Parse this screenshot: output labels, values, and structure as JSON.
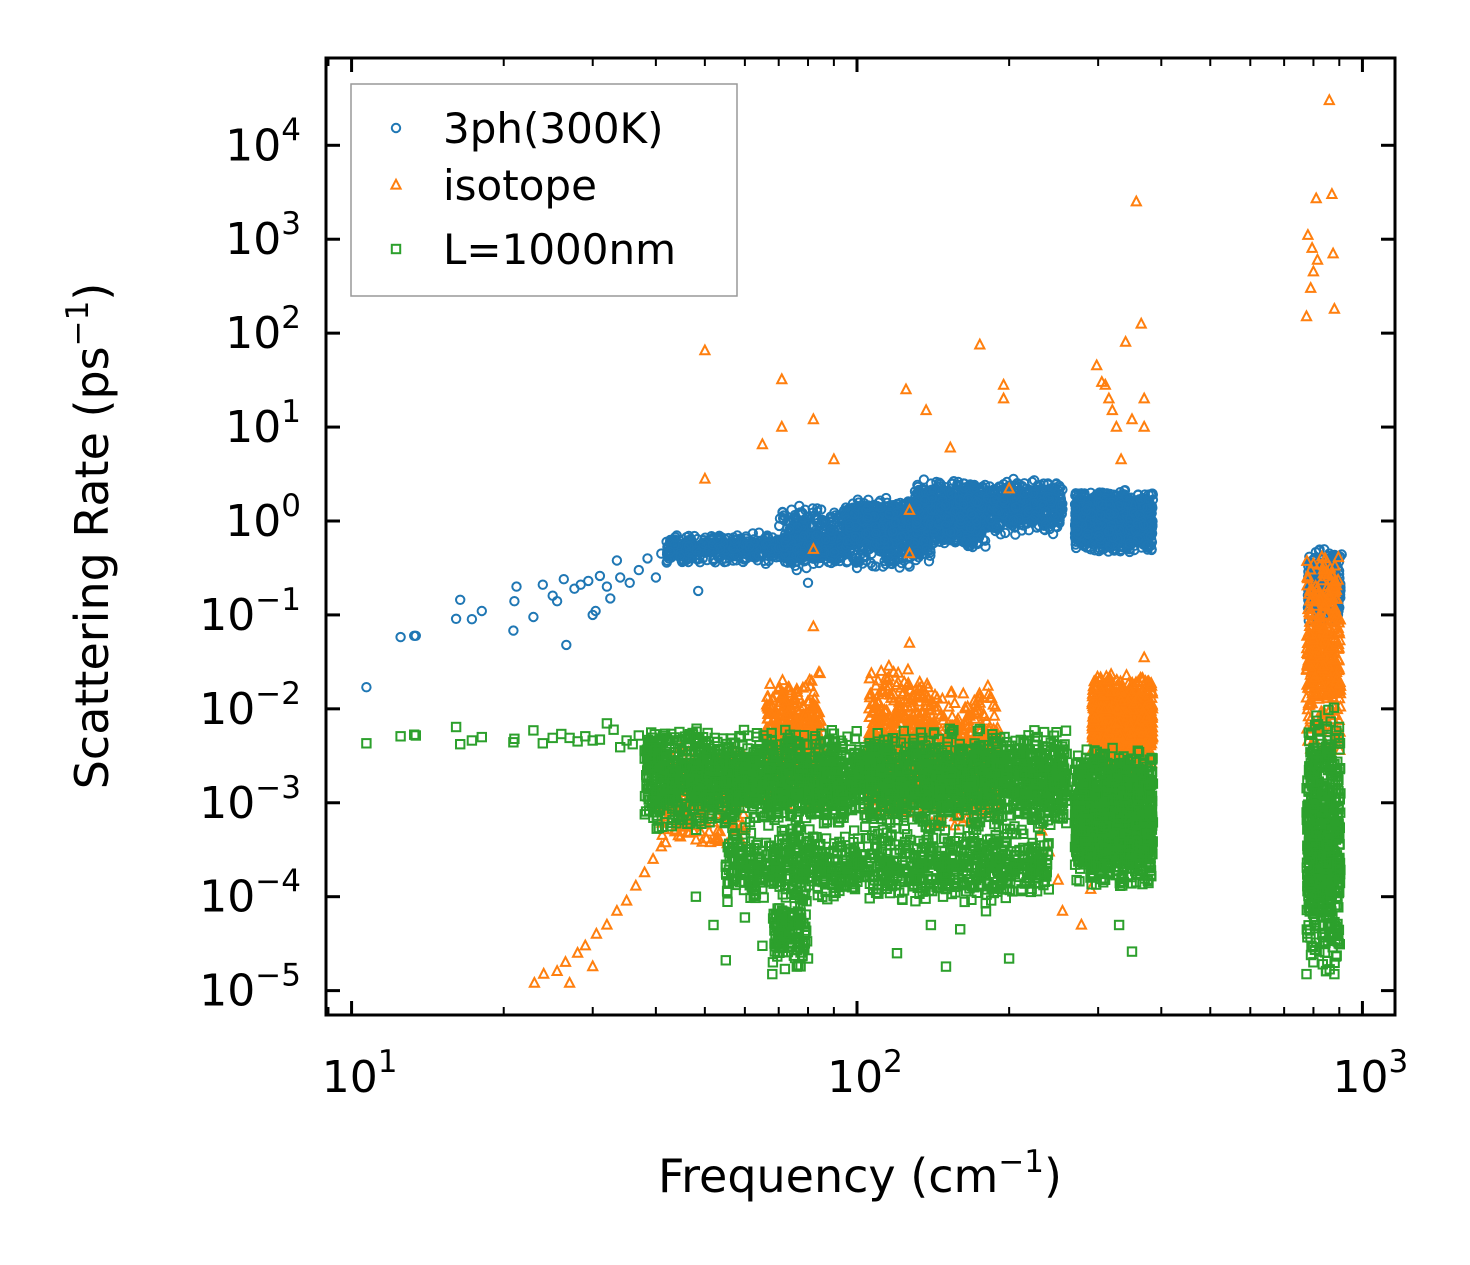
{
  "chart_data": {
    "type": "scatter",
    "title": "",
    "xlabel": "Frequency (cm",
    "xlabel_exp": "−1",
    "xlabel_suffix": ")",
    "ylabel": "Scattering Rate (ps",
    "ylabel_exp": "−1",
    "ylabel_suffix": ")",
    "xscale": "log",
    "yscale": "log",
    "xlim": [
      8.9,
      1160
    ],
    "ylim": [
      5.5e-06,
      85000.0
    ],
    "grid": false,
    "legend_position": "top-left",
    "x_ticks": [
      {
        "value": 10,
        "base": "10",
        "exp": "1"
      },
      {
        "value": 100,
        "base": "10",
        "exp": "2"
      },
      {
        "value": 1000,
        "base": "10",
        "exp": "3"
      }
    ],
    "y_ticks": [
      {
        "value": 1e-05,
        "base": "10",
        "exp": "−5"
      },
      {
        "value": 0.0001,
        "base": "10",
        "exp": "−4"
      },
      {
        "value": 0.001,
        "base": "10",
        "exp": "−3"
      },
      {
        "value": 0.01,
        "base": "10",
        "exp": "−2"
      },
      {
        "value": 0.1,
        "base": "10",
        "exp": "−1"
      },
      {
        "value": 1,
        "base": "10",
        "exp": "0"
      },
      {
        "value": 10,
        "base": "10",
        "exp": "1"
      },
      {
        "value": 100,
        "base": "10",
        "exp": "2"
      },
      {
        "value": 1000,
        "base": "10",
        "exp": "3"
      },
      {
        "value": 10000,
        "base": "10",
        "exp": "4"
      }
    ],
    "series": [
      {
        "name": "3ph(300K)",
        "color": "#1f77b4",
        "marker": "circle",
        "points": [
          [
            10.7,
            0.017
          ],
          [
            12.5,
            0.058
          ],
          [
            13.3,
            0.06
          ],
          [
            13.4,
            0.06
          ],
          [
            16.1,
            0.091
          ],
          [
            16.4,
            0.145
          ],
          [
            17.3,
            0.09
          ],
          [
            18.1,
            0.11
          ],
          [
            20.9,
            0.068
          ],
          [
            21.0,
            0.14
          ],
          [
            21.2,
            0.2
          ],
          [
            22.9,
            0.095
          ],
          [
            23.9,
            0.21
          ],
          [
            25.0,
            0.16
          ],
          [
            25.5,
            0.14
          ],
          [
            26.3,
            0.24
          ],
          [
            26.6,
            0.048
          ],
          [
            27.6,
            0.19
          ],
          [
            28.4,
            0.21
          ],
          [
            29.4,
            0.23
          ],
          [
            30.0,
            0.1
          ],
          [
            30.4,
            0.11
          ],
          [
            31.0,
            0.26
          ],
          [
            32.0,
            0.2
          ],
          [
            32.5,
            0.15
          ],
          [
            33.5,
            0.38
          ],
          [
            34.0,
            0.25
          ],
          [
            35.5,
            0.22
          ],
          [
            37.0,
            0.3
          ],
          [
            38.5,
            0.4
          ],
          [
            40.0,
            0.25
          ],
          [
            41.0,
            0.45
          ],
          [
            42.0,
            0.6
          ],
          [
            43.0,
            0.55
          ],
          [
            44.0,
            0.7
          ],
          [
            45.5,
            0.5
          ],
          [
            47.0,
            0.62
          ],
          [
            48.5,
            0.18
          ],
          [
            50.0,
            0.55
          ],
          [
            52.0,
            0.65
          ],
          [
            54.0,
            0.6
          ],
          [
            56.0,
            0.5
          ],
          [
            58.0,
            0.7
          ],
          [
            60.0,
            0.58
          ],
          [
            62.0,
            0.45
          ],
          [
            64.0,
            0.75
          ],
          [
            66.0,
            0.35
          ],
          [
            68.0,
            0.5
          ],
          [
            70.0,
            0.62
          ],
          [
            72.0,
            0.45
          ],
          [
            74.0,
            0.55
          ],
          [
            76.0,
            0.3
          ],
          [
            78.0,
            0.45
          ],
          [
            80.0,
            0.22
          ],
          [
            82.0,
            0.35
          ],
          [
            84.0,
            0.5
          ],
          [
            86.0,
            0.55
          ],
          [
            88.0,
            0.6
          ],
          [
            90.0,
            0.8
          ],
          [
            93.0,
            0.45
          ],
          [
            96.0,
            1.0
          ],
          [
            99.0,
            0.7
          ],
          [
            102.0,
            1.2
          ],
          [
            105.0,
            0.9
          ],
          [
            108.0,
            0.6
          ],
          [
            112.0,
            1.4
          ],
          [
            116.0,
            0.5
          ],
          [
            120.0,
            1.1
          ],
          [
            124.0,
            0.8
          ],
          [
            128.0,
            1.5
          ],
          [
            132.0,
            1.3
          ],
          [
            136.0,
            0.9
          ],
          [
            140.0,
            2.5
          ],
          [
            145.0,
            1.8
          ],
          [
            150.0,
            1.2
          ],
          [
            155.0,
            2.0
          ],
          [
            160.0,
            1.5
          ],
          [
            165.0,
            0.8
          ],
          [
            170.0,
            1.1
          ],
          [
            175.0,
            1.6
          ],
          [
            180.0,
            1.9
          ],
          [
            186.0,
            1.3
          ],
          [
            192.0,
            0.9
          ],
          [
            198.0,
            2.6
          ],
          [
            204.0,
            2.8
          ],
          [
            210.0,
            1.4
          ],
          [
            216.0,
            2.2
          ],
          [
            222.0,
            2.6
          ],
          [
            228.0,
            2.4
          ],
          [
            234.0,
            2.5
          ],
          [
            240.0,
            2.1
          ],
          [
            246.0,
            2.0
          ],
          [
            252.0,
            1.9
          ],
          [
            272.0,
            1.4
          ],
          [
            282.0,
            0.9
          ],
          [
            290.0,
            0.5
          ],
          [
            298.0,
            1.2
          ],
          [
            306.0,
            2.0
          ],
          [
            314.0,
            0.6
          ],
          [
            322.0,
            1.5
          ],
          [
            330.0,
            0.8
          ],
          [
            338.0,
            2.1
          ],
          [
            346.0,
            0.5
          ],
          [
            354.0,
            1.3
          ],
          [
            362.0,
            1.7
          ],
          [
            370.0,
            0.9
          ],
          [
            378.0,
            1.1
          ],
          [
            780.0,
            0.12
          ],
          [
            800.0,
            0.25
          ],
          [
            820.0,
            0.35
          ],
          [
            840.0,
            0.5
          ],
          [
            860.0,
            0.45
          ],
          [
            880.0,
            0.3
          ],
          [
            900.0,
            0.42
          ],
          [
            910.0,
            0.44
          ]
        ],
        "bands": [
          {
            "x": [
              42,
              95
            ],
            "y": [
              0.35,
              0.75
            ],
            "n": 600
          },
          {
            "x": [
              70,
              140
            ],
            "y": [
              0.3,
              1.5
            ],
            "n": 600
          },
          {
            "x": [
              95,
              180
            ],
            "y": [
              0.5,
              1.8
            ],
            "n": 900
          },
          {
            "x": [
              130,
              255
            ],
            "y": [
              0.7,
              2.8
            ],
            "n": 900
          },
          {
            "x": [
              270,
              385
            ],
            "y": [
              0.45,
              2.2
            ],
            "n": 1300
          },
          {
            "x": [
              780,
              905
            ],
            "y": [
              0.08,
              0.55
            ],
            "n": 260
          }
        ]
      },
      {
        "name": "isotope",
        "color": "#ff7f0e",
        "marker": "triangle",
        "points": [
          [
            23.0,
            1.2e-05
          ],
          [
            24.0,
            1.5e-05
          ],
          [
            25.5,
            1.6e-05
          ],
          [
            26.5,
            2e-05
          ],
          [
            27.0,
            1.2e-05
          ],
          [
            28.0,
            2.5e-05
          ],
          [
            29.0,
            3e-05
          ],
          [
            30.0,
            1.8e-05
          ],
          [
            30.5,
            4e-05
          ],
          [
            32.0,
            5e-05
          ],
          [
            33.5,
            7e-05
          ],
          [
            35.0,
            9e-05
          ],
          [
            36.5,
            0.00013
          ],
          [
            38.0,
            0.00018
          ],
          [
            39.5,
            0.00025
          ],
          [
            41.0,
            0.00034
          ],
          [
            50.0,
            65
          ],
          [
            50.0,
            2.8
          ],
          [
            65.0,
            6.5
          ],
          [
            71.0,
            32
          ],
          [
            71.0,
            10
          ],
          [
            82.0,
            12
          ],
          [
            82.0,
            0.5
          ],
          [
            82.0,
            0.075
          ],
          [
            90.0,
            4.5
          ],
          [
            125.0,
            25
          ],
          [
            127.0,
            1.3
          ],
          [
            127.0,
            0.45
          ],
          [
            137.0,
            15
          ],
          [
            153.0,
            6
          ],
          [
            175.0,
            75
          ],
          [
            195.0,
            28
          ],
          [
            195.0,
            20
          ],
          [
            200.0,
            2.2
          ],
          [
            298.0,
            45
          ],
          [
            305.0,
            30
          ],
          [
            310.0,
            28
          ],
          [
            315.0,
            20
          ],
          [
            320.0,
            15
          ],
          [
            326.0,
            10
          ],
          [
            333.0,
            4.5
          ],
          [
            340.0,
            80
          ],
          [
            350.0,
            12
          ],
          [
            357.0,
            2500
          ],
          [
            365.0,
            125
          ],
          [
            370.0,
            20
          ],
          [
            370.0,
            10
          ],
          [
            775.0,
            150
          ],
          [
            780.0,
            1100
          ],
          [
            790.0,
            300
          ],
          [
            795.0,
            800
          ],
          [
            800.0,
            450
          ],
          [
            810.0,
            2700
          ],
          [
            815.0,
            600
          ],
          [
            860.0,
            30000
          ],
          [
            870.0,
            3000
          ],
          [
            875.0,
            700
          ],
          [
            880.0,
            180
          ],
          [
            232.0,
            0.0005
          ],
          [
            240.0,
            0.0003
          ],
          [
            250.0,
            0.00015
          ],
          [
            255.0,
            7e-05
          ],
          [
            278.0,
            5e-05
          ],
          [
            290.0,
            0.00012
          ],
          [
            370.0,
            0.035
          ],
          [
            127.0,
            0.05
          ],
          [
            175.0,
            0.013
          ]
        ],
        "bands": [
          {
            "x": [
              41,
              60
            ],
            "y": [
              0.0003,
              0.004
            ],
            "n": 220
          },
          {
            "x": [
              66,
              85
            ],
            "y": [
              0.0008,
              0.025
            ],
            "n": 520
          },
          {
            "x": [
              105,
              140
            ],
            "y": [
              0.0006,
              0.03
            ],
            "n": 520
          },
          {
            "x": [
              140,
              190
            ],
            "y": [
              0.0005,
              0.018
            ],
            "n": 420
          },
          {
            "x": [
              292,
              385
            ],
            "y": [
              0.002,
              0.025
            ],
            "n": 900
          },
          {
            "x": [
              775,
              905
            ],
            "y": [
              0.003,
              0.6
            ],
            "n": 420
          }
        ]
      },
      {
        "name": "L=1000nm",
        "color": "#2ca02c",
        "marker": "square",
        "points": [
          [
            10.7,
            0.0043
          ],
          [
            12.5,
            0.0051
          ],
          [
            13.3,
            0.0053
          ],
          [
            13.4,
            0.0052
          ],
          [
            16.1,
            0.0064
          ],
          [
            16.4,
            0.0042
          ],
          [
            17.3,
            0.0046
          ],
          [
            18.1,
            0.005
          ],
          [
            20.9,
            0.0044
          ],
          [
            21.0,
            0.0048
          ],
          [
            22.9,
            0.0059
          ],
          [
            23.9,
            0.0043
          ],
          [
            25.0,
            0.0049
          ],
          [
            26.0,
            0.0054
          ],
          [
            27.0,
            0.0049
          ],
          [
            28.0,
            0.0045
          ],
          [
            29.0,
            0.0051
          ],
          [
            30.0,
            0.0046
          ],
          [
            31.0,
            0.0047
          ],
          [
            32.0,
            0.007
          ],
          [
            33.0,
            0.006
          ],
          [
            34.0,
            0.0039
          ],
          [
            35.0,
            0.0046
          ],
          [
            36.0,
            0.0042
          ],
          [
            37.0,
            0.0052
          ],
          [
            38.0,
            0.0036
          ],
          [
            39.0,
            0.0044
          ],
          [
            40.0,
            0.0025
          ],
          [
            48.0,
            0.0001
          ],
          [
            52.0,
            5e-05
          ],
          [
            55.0,
            2.1e-05
          ],
          [
            57.0,
            0.00025
          ],
          [
            60.0,
            6e-05
          ],
          [
            65.0,
            3e-05
          ],
          [
            68.0,
            1.5e-05
          ],
          [
            72.0,
            1.7e-05
          ],
          [
            76.0,
            1.8e-05
          ],
          [
            80.0,
            2.2e-05
          ],
          [
            95.0,
            0.00016
          ],
          [
            100.0,
            0.00016
          ],
          [
            110.0,
            0.00017
          ],
          [
            120.0,
            2.5e-05
          ],
          [
            140.0,
            5e-05
          ],
          [
            150.0,
            1.8e-05
          ],
          [
            160.0,
            4.5e-05
          ],
          [
            180.0,
            7e-05
          ],
          [
            200.0,
            2.2e-05
          ],
          [
            350.0,
            2.6e-05
          ],
          [
            330.0,
            5e-05
          ],
          [
            775.0,
            1.5e-05
          ],
          [
            800.0,
            2e-05
          ],
          [
            880.0,
            1.5e-05
          ]
        ],
        "bands": [
          {
            "x": [
              38,
              260
            ],
            "y": [
              0.0005,
              0.0065
            ],
            "n": 2400
          },
          {
            "x": [
              55,
              240
            ],
            "y": [
              8e-05,
              0.0006
            ],
            "n": 900
          },
          {
            "x": [
              68,
              80
            ],
            "y": [
              1.5e-05,
              0.00012
            ],
            "n": 120
          },
          {
            "x": [
              270,
              385
            ],
            "y": [
              0.00012,
              0.004
            ],
            "n": 1300
          },
          {
            "x": [
              775,
              905
            ],
            "y": [
              1.5e-05,
              0.012
            ],
            "n": 600
          }
        ]
      }
    ]
  }
}
